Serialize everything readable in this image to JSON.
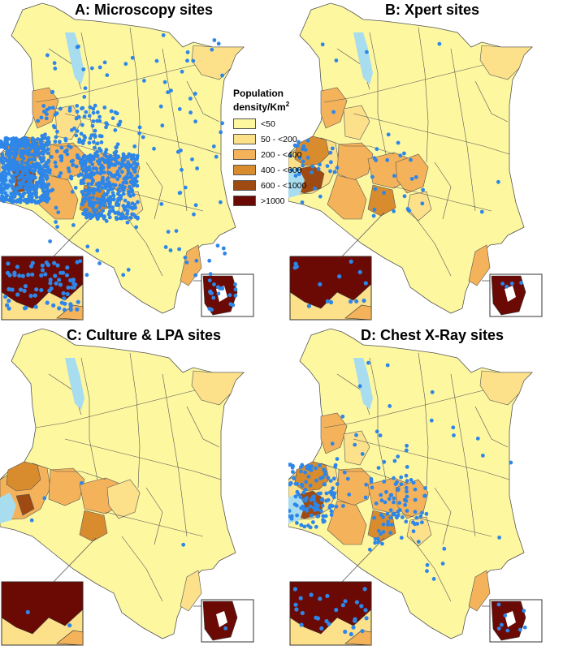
{
  "panels": [
    {
      "id": "A",
      "title": "A: Microscopy sites",
      "density": "high"
    },
    {
      "id": "B",
      "title": "B: Xpert sites",
      "density": "low"
    },
    {
      "id": "C",
      "title": "C: Culture & LPA sites",
      "density": "minimal"
    },
    {
      "id": "D",
      "title": "D: Chest X-Ray sites",
      "density": "medium"
    }
  ],
  "legend": {
    "title_line1": "Population",
    "title_line2": "density/Km",
    "title_sup": "2",
    "items": [
      {
        "label": "<50",
        "color": "#fdf7a0"
      },
      {
        "label": "50 - <200",
        "color": "#fce08a"
      },
      {
        "label": "200 - <400",
        "color": "#f4b35a"
      },
      {
        "label": "400 - <600",
        "color": "#d98c2e"
      },
      {
        "label": "600 - <1000",
        "color": "#9e4a12"
      },
      {
        "label": ">1000",
        "color": "#6b0a05"
      }
    ]
  },
  "colors": {
    "site_dot": "#2e86e8",
    "lake": "#a8dcef",
    "border": "#555555"
  }
}
